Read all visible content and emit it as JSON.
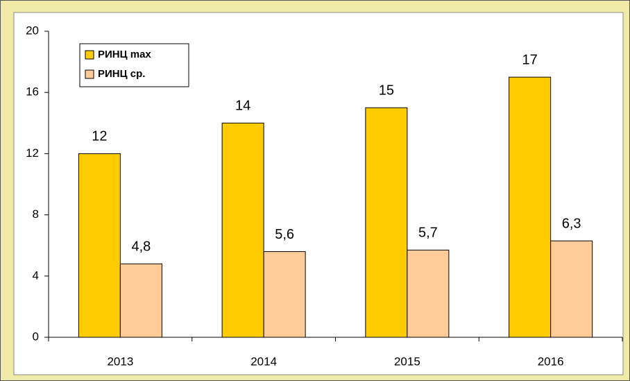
{
  "chart_data": {
    "type": "bar",
    "categories": [
      "2013",
      "2014",
      "2015",
      "2016"
    ],
    "series": [
      {
        "name": "РИНЦ max",
        "color": "#ffcc00",
        "values": [
          12,
          14,
          15,
          17
        ]
      },
      {
        "name": "РИНЦ ср.",
        "color": "#ffcc99",
        "values": [
          4.8,
          5.6,
          5.7,
          6.3
        ],
        "value_labels": [
          "4,8",
          "5,6",
          "5,7",
          "6,3"
        ]
      }
    ],
    "ylim": [
      0,
      20
    ],
    "yticks": [
      0,
      4,
      8,
      12,
      16,
      20
    ],
    "grid": false,
    "legend": "top-left"
  }
}
